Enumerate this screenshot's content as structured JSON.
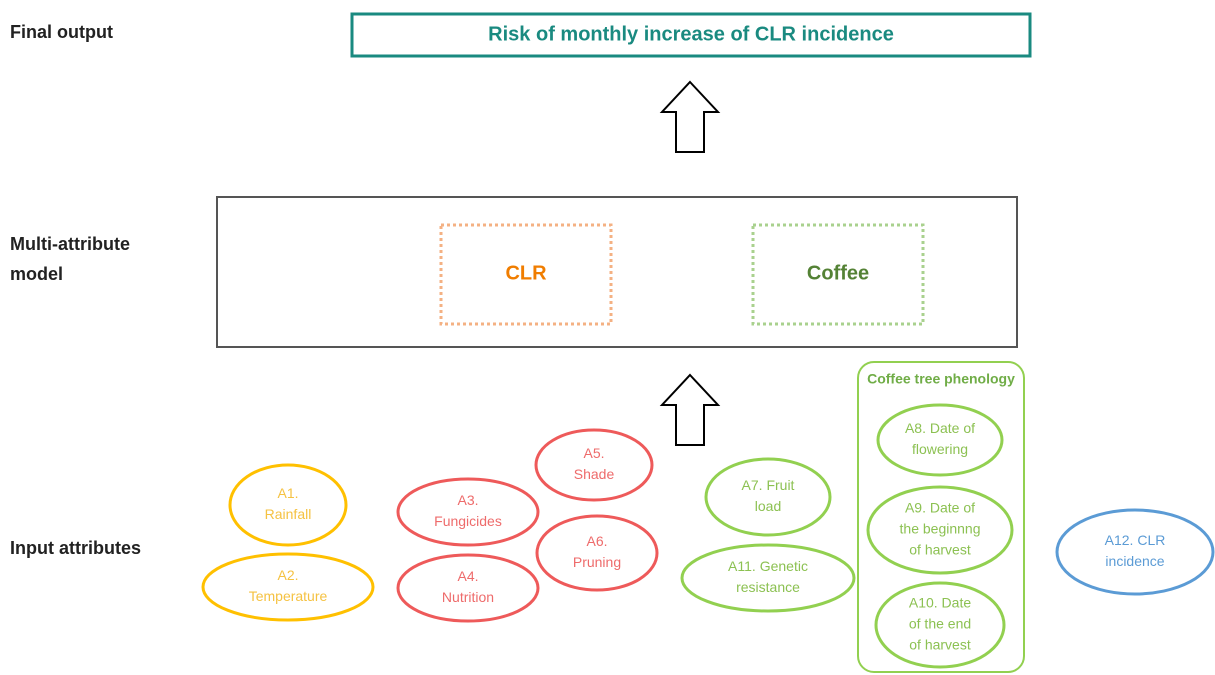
{
  "labels": {
    "final_output": "Final output",
    "model": [
      "Multi-attribute",
      "model"
    ],
    "inputs": "Input attributes"
  },
  "output_box": "Risk of monthly increase of CLR incidence",
  "model_groups": [
    "CLR",
    "Coffee"
  ],
  "phenology_group": "Coffee tree phenology",
  "attributes": [
    {
      "lines": [
        "A1.",
        "Rainfall"
      ]
    },
    {
      "lines": [
        "A2.",
        "Temperature"
      ]
    },
    {
      "lines": [
        "A3.",
        "Fungicides"
      ]
    },
    {
      "lines": [
        "A4.",
        "Nutrition"
      ]
    },
    {
      "lines": [
        "A5.",
        "Shade"
      ]
    },
    {
      "lines": [
        "A6.",
        "Pruning"
      ]
    },
    {
      "lines": [
        "A7. Fruit",
        "load"
      ]
    },
    {
      "lines": [
        "A11. Genetic",
        "resistance"
      ]
    },
    {
      "lines": [
        "A8. Date of",
        "flowering"
      ]
    },
    {
      "lines": [
        "A9. Date of",
        "the beginnng",
        "of harvest"
      ]
    },
    {
      "lines": [
        "A10. Date",
        "of the end",
        "of harvest"
      ]
    },
    {
      "lines": [
        "A12. CLR",
        "incidence"
      ]
    }
  ]
}
